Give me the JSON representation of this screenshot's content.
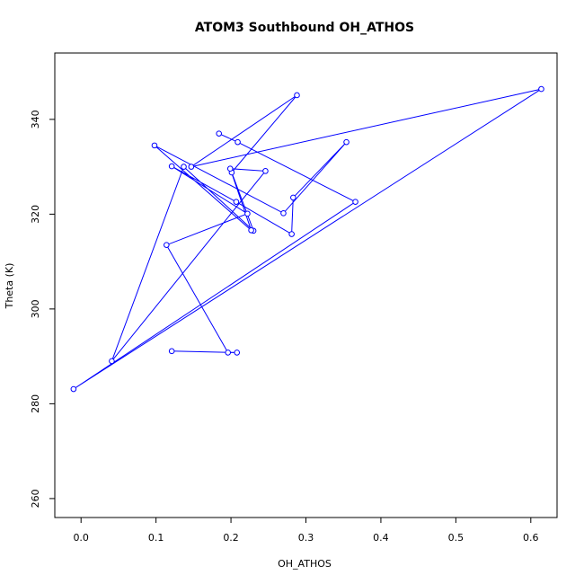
{
  "chart_data": {
    "type": "scatter",
    "title": "ATOM3 Southbound OH_ATHOS",
    "xlabel": "OH_ATHOS",
    "ylabel": "Theta (K)",
    "xlim": [
      -0.035,
      0.635
    ],
    "ylim": [
      256,
      354
    ],
    "xticks": [
      0.0,
      0.1,
      0.2,
      0.3,
      0.4,
      0.5,
      0.6
    ],
    "xtick_labels": [
      "0.0",
      "0.1",
      "0.2",
      "0.3",
      "0.4",
      "0.5",
      "0.6"
    ],
    "yticks": [
      260,
      280,
      300,
      320,
      340
    ],
    "ytick_labels": [
      "260",
      "280",
      "300",
      "320",
      "340"
    ],
    "grid": false,
    "color": "#0000ff",
    "marker": "open-circle",
    "connected": true,
    "series": [
      {
        "x": [
          0.184,
          0.209,
          0.366,
          -0.01,
          0.614,
          0.147,
          0.288,
          0.201,
          0.23,
          0.137,
          0.041,
          0.246,
          0.199,
          0.227,
          0.098,
          0.27,
          0.354,
          0.283,
          0.281,
          0.207,
          0.121,
          0.222,
          0.114,
          0.196,
          0.208,
          0.121
        ],
        "y": [
          337.0,
          335.2,
          322.6,
          283.1,
          346.4,
          330.0,
          345.1,
          328.8,
          316.5,
          330.0,
          289.0,
          329.1,
          329.6,
          316.6,
          334.5,
          320.2,
          335.2,
          323.5,
          315.8,
          322.6,
          330.1,
          320.1,
          313.5,
          290.8,
          290.8,
          291.1
        ]
      }
    ]
  }
}
